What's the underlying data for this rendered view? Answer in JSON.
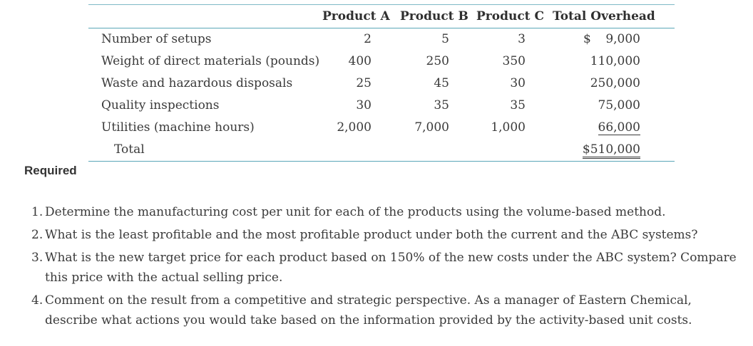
{
  "table": {
    "headers": [
      "Product A",
      "Product B",
      "Product C",
      "Total Overhead"
    ],
    "rows": [
      {
        "label": "Number of setups",
        "a": "2",
        "b": "5",
        "c": "3",
        "dollar": "$",
        "total": "9,000"
      },
      {
        "label": "Weight of direct materials (pounds)",
        "a": "400",
        "b": "250",
        "c": "350",
        "total": "110,000"
      },
      {
        "label": "Waste and hazardous disposals",
        "a": "25",
        "b": "45",
        "c": "30",
        "total": "250,000"
      },
      {
        "label": "Quality inspections",
        "a": "30",
        "b": "35",
        "c": "35",
        "total": "75,000"
      },
      {
        "label": "Utilities (machine hours)",
        "a": "2,000",
        "b": "7,000",
        "c": "1,000",
        "total": "66,000"
      }
    ],
    "total_label": "Total",
    "grand_total": "$510,000"
  },
  "required_label": "Required",
  "questions": [
    {
      "num": "1.",
      "text": "Determine the manufacturing cost per unit for each of the products using the volume-based method."
    },
    {
      "num": "2.",
      "text": "What is the least profitable and the most profitable product under both the current and the ABC systems?"
    },
    {
      "num": "3.",
      "text": "What is the new target price for each product based on 150% of the new costs under the ABC system? Compare this price with the actual selling price."
    },
    {
      "num": "4.",
      "text": "Comment on the result from a competitive and strategic perspective. As a manager of Eastern Chemical, describe what actions you would take based on the information provided by the activity-based unit costs."
    }
  ]
}
